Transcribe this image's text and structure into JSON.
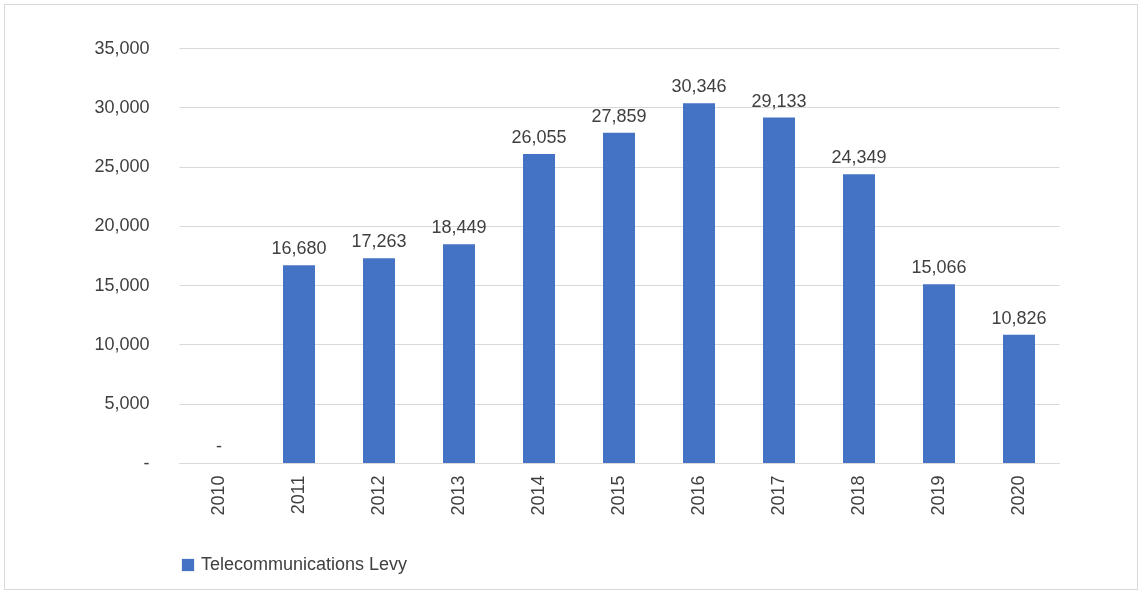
{
  "chart_data": {
    "type": "bar",
    "categories": [
      "2010",
      "2011",
      "2012",
      "2013",
      "2014",
      "2015",
      "2016",
      "2017",
      "2018",
      "2019",
      "2020"
    ],
    "series": [
      {
        "name": "Telecommunications Levy",
        "color": "#4472c4",
        "values": [
          0,
          16680,
          17263,
          18449,
          26055,
          27859,
          30346,
          29133,
          24349,
          15066,
          10826
        ],
        "value_labels": [
          "-",
          "16,680",
          "17,263",
          "18,449",
          "26,055",
          "27,859",
          "30,346",
          "29,133",
          "24,349",
          "15,066",
          "10,826"
        ]
      }
    ],
    "ylim": [
      0,
      35000
    ],
    "yticks": [
      {
        "value": 0,
        "label": "-"
      },
      {
        "value": 5000,
        "label": "5,000"
      },
      {
        "value": 10000,
        "label": "10,000"
      },
      {
        "value": 15000,
        "label": "15,000"
      },
      {
        "value": 20000,
        "label": "20,000"
      },
      {
        "value": 25000,
        "label": "25,000"
      },
      {
        "value": 30000,
        "label": "30,000"
      },
      {
        "value": 35000,
        "label": "35,000"
      }
    ],
    "grid": "y",
    "legend": "bottom"
  }
}
